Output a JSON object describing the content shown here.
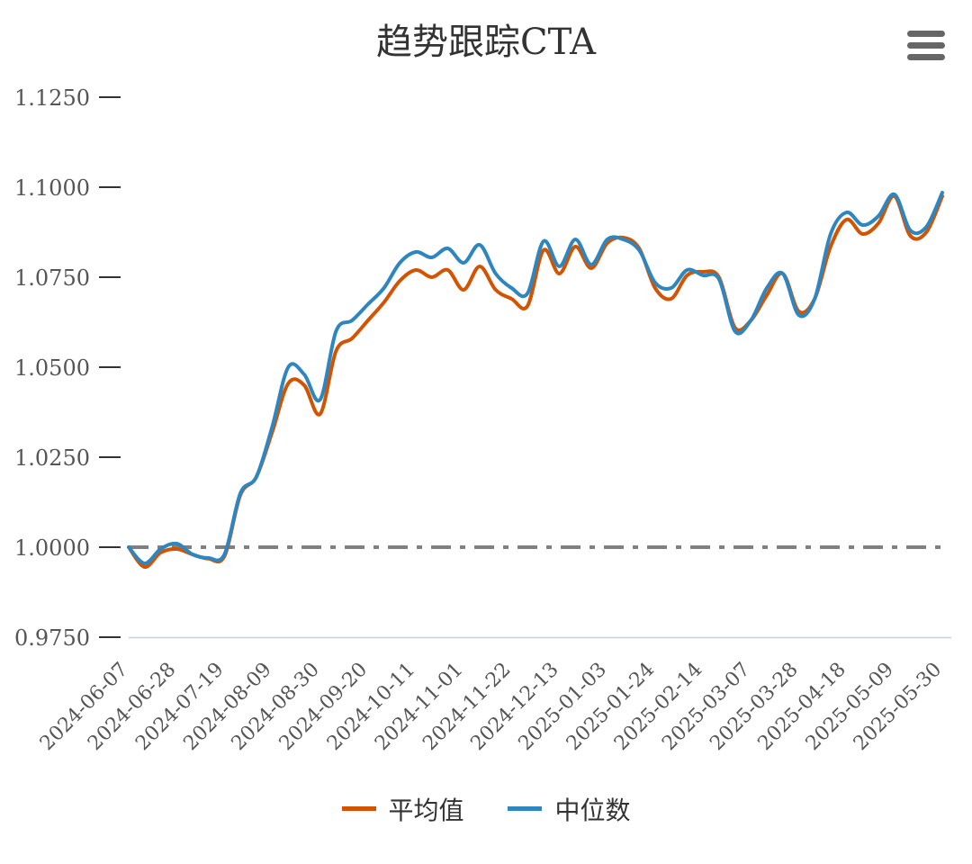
{
  "chart_data": {
    "type": "line",
    "title": "趋势跟踪CTA",
    "ylim": [
      0.975,
      1.125
    ],
    "yticks": [
      "1.1250",
      "1.1000",
      "1.0750",
      "1.0500",
      "1.0250",
      "1.0000",
      "0.9750"
    ],
    "xtick_labels": [
      "2024-06-07",
      "2024-06-28",
      "2024-07-19",
      "2024-08-09",
      "2024-08-30",
      "2024-09-20",
      "2024-10-11",
      "2024-11-01",
      "2024-11-22",
      "2024-12-13",
      "2025-01-03",
      "2025-01-24",
      "2025-02-14",
      "2025-03-07",
      "2025-03-28",
      "2025-04-18",
      "2025-05-09",
      "2025-05-30"
    ],
    "x": [
      "2024-06-07",
      "2024-06-14",
      "2024-06-21",
      "2024-06-28",
      "2024-07-05",
      "2024-07-12",
      "2024-07-19",
      "2024-07-26",
      "2024-08-02",
      "2024-08-09",
      "2024-08-16",
      "2024-08-23",
      "2024-08-30",
      "2024-09-06",
      "2024-09-13",
      "2024-09-20",
      "2024-09-27",
      "2024-10-04",
      "2024-10-11",
      "2024-10-18",
      "2024-10-25",
      "2024-11-01",
      "2024-11-08",
      "2024-11-15",
      "2024-11-22",
      "2024-11-29",
      "2024-12-06",
      "2024-12-13",
      "2024-12-20",
      "2024-12-27",
      "2025-01-03",
      "2025-01-10",
      "2025-01-17",
      "2025-01-24",
      "2025-01-31",
      "2025-02-07",
      "2025-02-14",
      "2025-02-21",
      "2025-02-28",
      "2025-03-07",
      "2025-03-14",
      "2025-03-21",
      "2025-03-28",
      "2025-04-04",
      "2025-04-11",
      "2025-04-18",
      "2025-04-25",
      "2025-05-02",
      "2025-05-09",
      "2025-05-16",
      "2025-05-23",
      "2025-05-30"
    ],
    "series": [
      {
        "name": "平均值",
        "color": "#d35400",
        "values": [
          1.0,
          0.9945,
          0.9985,
          0.9995,
          0.998,
          0.9968,
          0.9975,
          1.0145,
          1.0195,
          1.032,
          1.0455,
          1.045,
          1.037,
          1.0545,
          1.058,
          1.063,
          1.068,
          1.074,
          1.077,
          1.075,
          1.077,
          1.0715,
          1.078,
          1.0715,
          1.069,
          1.067,
          1.0825,
          1.076,
          1.0835,
          1.0775,
          1.0845,
          1.086,
          1.083,
          1.072,
          1.069,
          1.0755,
          1.0765,
          1.075,
          1.061,
          1.063,
          1.07,
          1.076,
          1.0655,
          1.069,
          1.0835,
          1.091,
          1.087,
          1.09,
          1.0975,
          1.0865,
          1.0875,
          1.0975
        ]
      },
      {
        "name": "中位数",
        "color": "#2e86c1",
        "values": [
          1.0,
          0.9955,
          0.9995,
          1.001,
          0.998,
          0.997,
          0.998,
          1.015,
          1.0195,
          1.0335,
          1.05,
          1.048,
          1.041,
          1.06,
          1.063,
          1.0675,
          1.072,
          1.079,
          1.082,
          1.0805,
          1.083,
          1.079,
          1.084,
          1.076,
          1.072,
          1.0705,
          1.085,
          1.078,
          1.0855,
          1.0785,
          1.0855,
          1.0855,
          1.0825,
          1.0735,
          1.072,
          1.077,
          1.0755,
          1.0745,
          1.06,
          1.063,
          1.072,
          1.076,
          1.0645,
          1.069,
          1.087,
          1.093,
          1.0895,
          1.092,
          1.098,
          1.088,
          1.089,
          1.0985
        ]
      }
    ],
    "baseline": {
      "value": 1.0,
      "color": "#808080"
    },
    "legend_position": "bottom-center",
    "grid": false
  },
  "menu": {
    "icon": "hamburger-menu-icon"
  }
}
